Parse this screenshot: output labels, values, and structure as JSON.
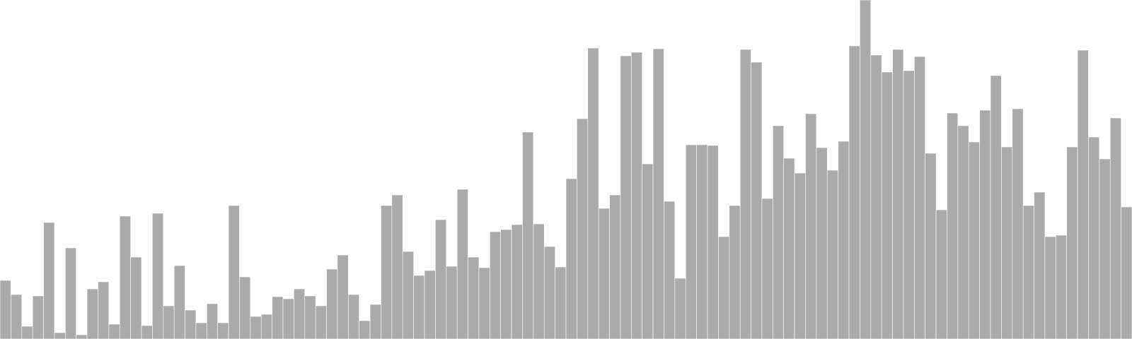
{
  "chart_data": {
    "type": "bar",
    "title": "",
    "xlabel": "",
    "ylabel": "",
    "ylim": [
      0,
      480
    ],
    "grid": false,
    "legend": "none",
    "bar_color": "#aaaaaa",
    "values": [
      83,
      63,
      18,
      61,
      165,
      9,
      129,
      6,
      71,
      81,
      21,
      174,
      116,
      19,
      178,
      47,
      104,
      41,
      23,
      50,
      23,
      189,
      88,
      32,
      35,
      60,
      57,
      71,
      61,
      47,
      99,
      119,
      63,
      26,
      49,
      189,
      204,
      124,
      90,
      97,
      169,
      103,
      212,
      116,
      101,
      152,
      155,
      162,
      293,
      163,
      131,
      102,
      227,
      312,
      412,
      185,
      204,
      401,
      406,
      248,
      411,
      195,
      86,
      275,
      275,
      274,
      145,
      189,
      410,
      392,
      199,
      302,
      256,
      235,
      319,
      271,
      239,
      280,
      415,
      480,
      402,
      378,
      410,
      380,
      400,
      263,
      183,
      320,
      302,
      279,
      324,
      373,
      272,
      326,
      189,
      208,
      145,
      147,
      272,
      409,
      286,
      255,
      313,
      187
    ]
  }
}
